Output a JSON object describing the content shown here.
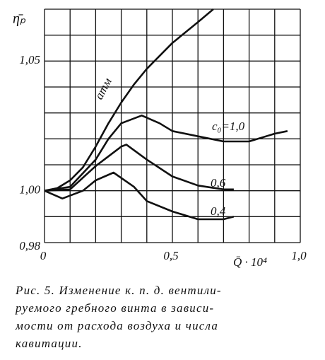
{
  "chart_data": {
    "type": "line",
    "y_label": "η̄ₚ",
    "x_label": "Q̄ · 10⁴",
    "xlim": [
      0,
      1.0
    ],
    "ylim": [
      0.98,
      1.07
    ],
    "xticks": [
      0,
      {
        "value": 0.5,
        "label": "0,5"
      },
      {
        "value": 1.0,
        "label": "1,0"
      }
    ],
    "yticks": [
      {
        "value": 0.98,
        "label": "0,98"
      },
      {
        "value": 1.0,
        "label": "1,00"
      },
      {
        "value": 1.05,
        "label": "1,05"
      }
    ],
    "xgrid": [
      0,
      0.1,
      0.2,
      0.3,
      0.4,
      0.5,
      0.6,
      0.7,
      0.8,
      0.9,
      1.0
    ],
    "ygrid": [
      0.98,
      0.99,
      1.0,
      1.01,
      1.02,
      1.03,
      1.04,
      1.05,
      1.06,
      1.07
    ],
    "grid": true,
    "series": [
      {
        "name": "атм",
        "color": "#111111",
        "x": [
          0,
          0.05,
          0.1,
          0.15,
          0.2,
          0.25,
          0.3,
          0.35,
          0.4,
          0.5,
          0.6,
          0.66
        ],
        "values": [
          1.0,
          1.001,
          1.004,
          1.009,
          1.017,
          1.026,
          1.034,
          1.041,
          1.047,
          1.057,
          1.065,
          1.07
        ]
      },
      {
        "name": "c₀=1,0",
        "color": "#111111",
        "x": [
          0,
          0.1,
          0.2,
          0.25,
          0.3,
          0.38,
          0.45,
          0.5,
          0.6,
          0.7,
          0.8,
          0.9,
          0.95
        ],
        "values": [
          1.0,
          1.0015,
          1.012,
          1.02,
          1.026,
          1.029,
          1.026,
          1.023,
          1.021,
          1.019,
          1.019,
          1.022,
          1.023
        ]
      },
      {
        "name": "0,6",
        "color": "#111111",
        "x": [
          0,
          0.1,
          0.2,
          0.3,
          0.32,
          0.4,
          0.5,
          0.6,
          0.7,
          0.74
        ],
        "values": [
          1.0,
          1.0005,
          1.0095,
          1.017,
          1.0178,
          1.012,
          1.0055,
          1.002,
          1.0005,
          1.0005
        ]
      },
      {
        "name": "0,4",
        "color": "#111111",
        "x": [
          0,
          0.07,
          0.15,
          0.2,
          0.27,
          0.35,
          0.4,
          0.5,
          0.6,
          0.7,
          0.74
        ],
        "values": [
          1.0,
          0.997,
          1.0,
          1.004,
          1.007,
          1.0015,
          0.996,
          0.992,
          0.989,
          0.989,
          0.99
        ]
      }
    ],
    "caption": [
      "Рис. 5. Изменение к. п. д. вентили-",
      "руемого гребного винта в зависи-",
      "мости от расхода воздуха и числа",
      "кавитации."
    ]
  }
}
